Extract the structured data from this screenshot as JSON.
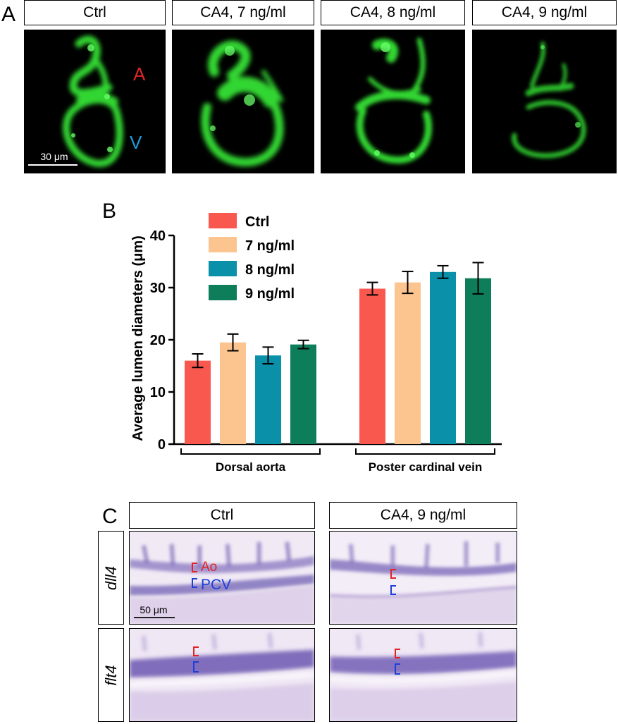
{
  "panel_a": {
    "letter": "A",
    "headers": [
      "Ctrl",
      "CA4, 7 ng/ml",
      "CA4, 8 ng/ml",
      "CA4, 9 ng/ml"
    ],
    "label_artery": "A",
    "label_vein": "V",
    "scale_bar": "30 μm",
    "colors": {
      "fluorescence": "#33e633",
      "artery_label": "#e02424",
      "vein_label": "#1e9be0"
    }
  },
  "panel_b": {
    "letter": "B"
  },
  "chart_data": {
    "type": "bar",
    "ylabel": "Average lumen diameters (μm)",
    "ylim": [
      0,
      40
    ],
    "yticks": [
      0,
      10,
      20,
      30,
      40
    ],
    "categories": [
      "Dorsal aorta",
      "Poster cardinal vein"
    ],
    "legend_position": "top-left",
    "series": [
      {
        "name": "Ctrl",
        "color": "#f9584f",
        "values": [
          16.0,
          29.8
        ],
        "errors": [
          1.3,
          1.2
        ]
      },
      {
        "name": "7  ng/ml",
        "color": "#fcc590",
        "values": [
          19.5,
          31.0
        ],
        "errors": [
          1.6,
          2.1
        ]
      },
      {
        "name": "8  ng/ml",
        "color": "#0a90a8",
        "values": [
          17.0,
          33.0
        ],
        "errors": [
          1.6,
          1.2
        ]
      },
      {
        "name": "9  ng/ml",
        "color": "#0e7d5a",
        "values": [
          19.1,
          31.8
        ],
        "errors": [
          0.8,
          3.0
        ]
      }
    ]
  },
  "panel_c": {
    "letter": "C",
    "headers": [
      "Ctrl",
      "CA4, 9 ng/ml"
    ],
    "rows": [
      "dll4",
      "flt4"
    ],
    "label_aorta": "Ao",
    "label_vein": "PCV",
    "scale_bar": "50 μm",
    "colors": {
      "aorta": "#e02424",
      "vein": "#1d3fd8",
      "stain": "#5a3d9e"
    }
  }
}
